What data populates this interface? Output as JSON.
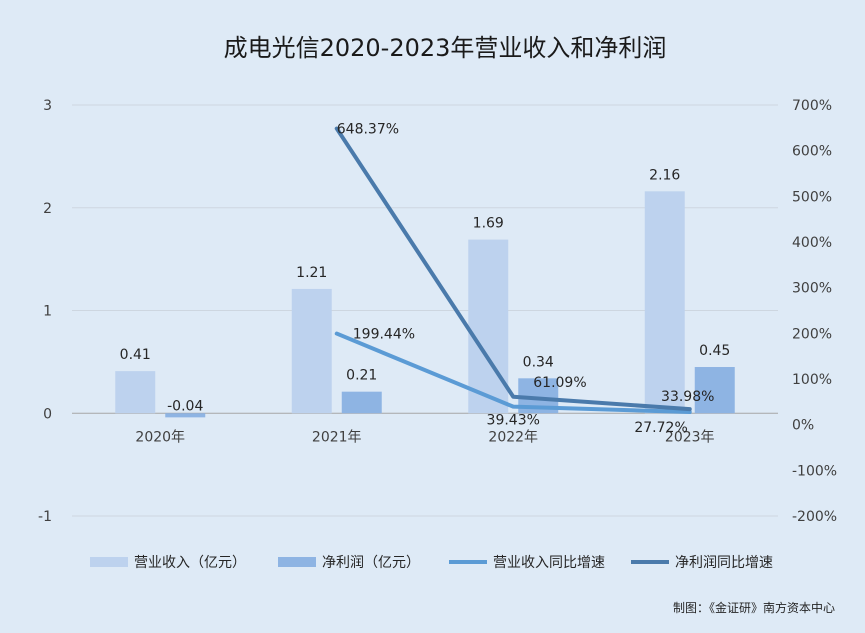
{
  "chart_data": {
    "type": "bar",
    "title": "成电光信2020-2023年营业收入和净利润",
    "categories": [
      "2020年",
      "2021年",
      "2022年",
      "2023年"
    ],
    "y_left": {
      "ylim": [
        -1,
        3
      ],
      "ticks": [
        "3",
        "2",
        "1",
        "0",
        "-1"
      ],
      "tick_values": [
        3,
        2,
        1,
        0,
        -1
      ]
    },
    "y_right": {
      "ylim": [
        -200,
        700
      ],
      "ticks": [
        "700%",
        "600%",
        "500%",
        "400%",
        "300%",
        "200%",
        "100%",
        "0%",
        "-100%",
        "-200%"
      ],
      "tick_values": [
        700,
        600,
        500,
        400,
        300,
        200,
        100,
        0,
        -100,
        -200
      ]
    },
    "series": [
      {
        "name": "营业收入（亿元）",
        "type": "bar",
        "axis": "left",
        "color": "#bdd2ee",
        "values": [
          0.41,
          1.21,
          1.69,
          2.16
        ],
        "labels": [
          "0.41",
          "1.21",
          "1.69",
          "2.16"
        ]
      },
      {
        "name": "净利润（亿元）",
        "type": "bar",
        "axis": "left",
        "color": "#8eb4e3",
        "values": [
          -0.04,
          0.21,
          0.34,
          0.45
        ],
        "labels": [
          "-0.04",
          "0.21",
          "0.34",
          "0.45"
        ]
      },
      {
        "name": "营业收入同比增速",
        "type": "line",
        "axis": "right",
        "color": "#5b9bd5",
        "values": [
          null,
          199.44,
          39.43,
          27.72
        ],
        "labels": [
          "",
          "199.44%",
          "39.43%",
          "27.72%"
        ]
      },
      {
        "name": "净利润同比增速",
        "type": "line",
        "axis": "right",
        "color": "#4a7aab",
        "values": [
          null,
          648.37,
          61.09,
          33.98
        ],
        "labels": [
          "",
          "648.37%",
          "61.09%",
          "33.98%"
        ]
      }
    ],
    "grid": true,
    "legend": "bottom"
  },
  "footer": {
    "credit": "制图：《金证研》南方资本中心"
  }
}
